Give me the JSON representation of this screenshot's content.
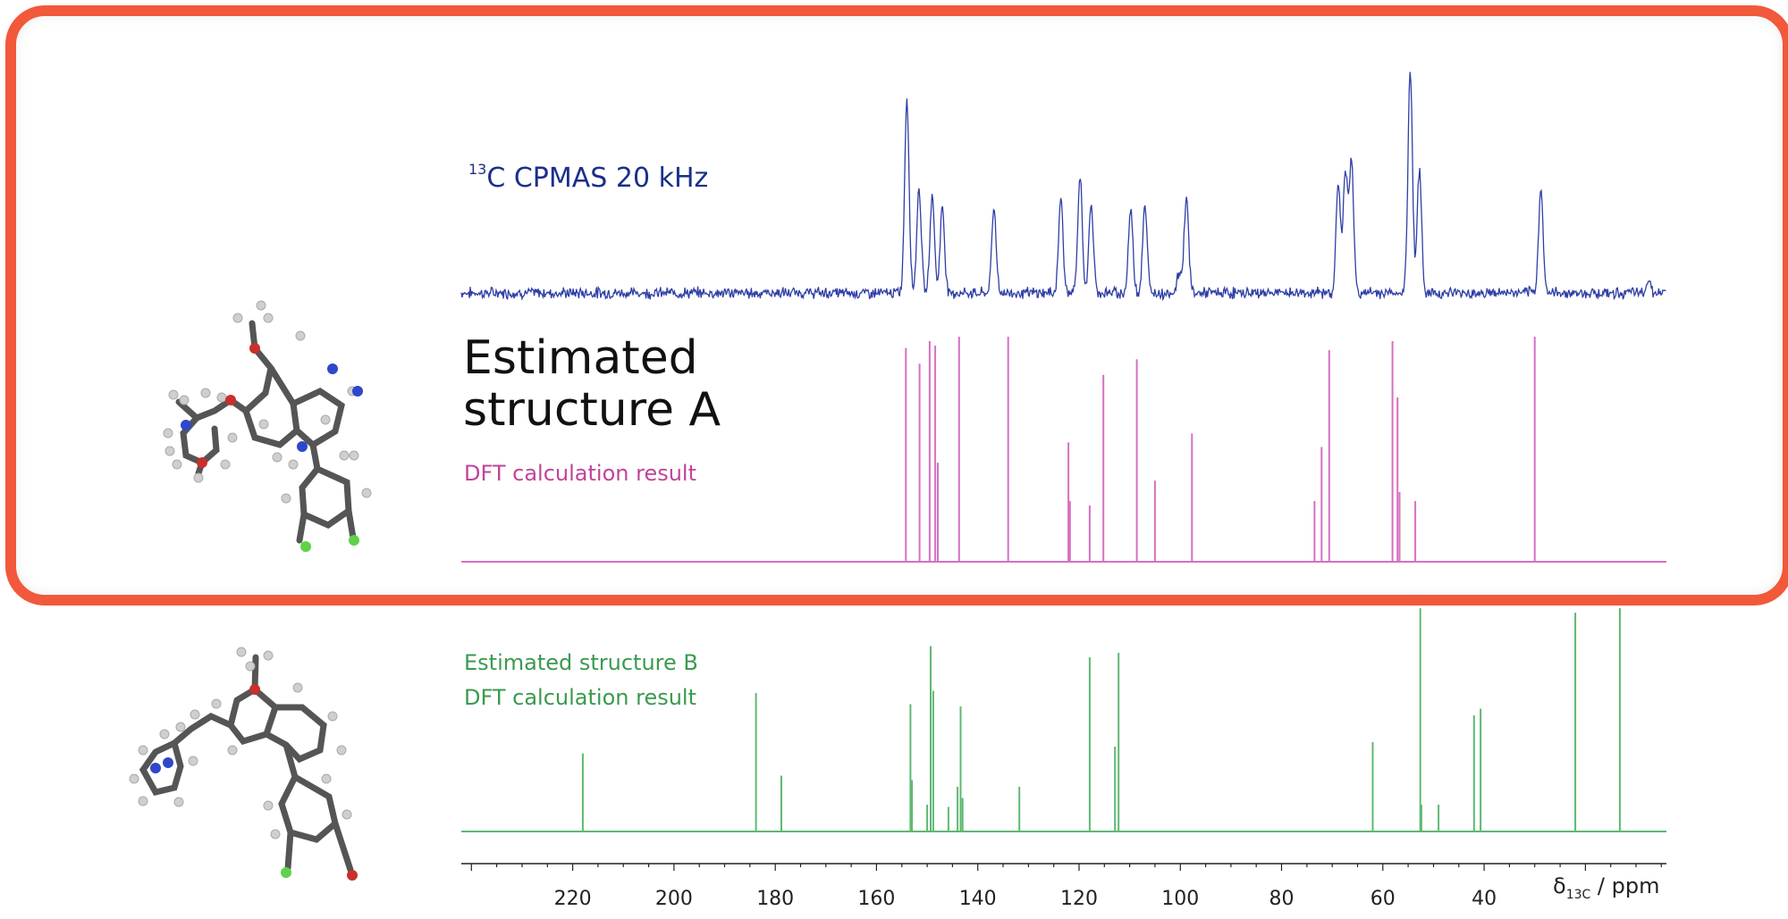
{
  "labels": {
    "cpmas_sup": "13",
    "cpmas_text": "C CPMAS 20 kHz",
    "structure_a_line1": "Estimated",
    "structure_a_line2": "structure A",
    "dft_a": "DFT calculation result",
    "structure_b": "Estimated structure B",
    "dft_b": "DFT calculation result",
    "axis_unit_delta": "δ",
    "axis_unit_sub": "13C",
    "axis_unit_rest": " / ppm"
  },
  "colors": {
    "highlight_frame": "#f2583a",
    "experimental": "#2f3fa5",
    "structure_a": "#d670c2",
    "structure_b": "#5fb872",
    "axis": "#222222"
  },
  "chart_data": {
    "type": "line",
    "xlabel": "δ13C / ppm",
    "x_reversed": true,
    "xlim": [
      242,
      4
    ],
    "xticks": [
      220,
      200,
      180,
      160,
      140,
      120,
      100,
      80,
      60,
      40
    ],
    "series": [
      {
        "name": "13C CPMAS 20 kHz",
        "kind": "spectrum",
        "peaks": [
          {
            "ppm": 154.0,
            "height": 0.86
          },
          {
            "ppm": 151.6,
            "height": 0.47
          },
          {
            "ppm": 149.0,
            "height": 0.44
          },
          {
            "ppm": 147.0,
            "height": 0.38
          },
          {
            "ppm": 136.8,
            "height": 0.38
          },
          {
            "ppm": 123.6,
            "height": 0.42
          },
          {
            "ppm": 119.8,
            "height": 0.51
          },
          {
            "ppm": 117.6,
            "height": 0.39
          },
          {
            "ppm": 109.8,
            "height": 0.37
          },
          {
            "ppm": 107.0,
            "height": 0.39
          },
          {
            "ppm": 100.2,
            "height": 0.09
          },
          {
            "ppm": 98.8,
            "height": 0.43
          },
          {
            "ppm": 68.8,
            "height": 0.48
          },
          {
            "ppm": 67.4,
            "height": 0.53
          },
          {
            "ppm": 66.2,
            "height": 0.58
          },
          {
            "ppm": 54.6,
            "height": 1.0
          },
          {
            "ppm": 52.8,
            "height": 0.54
          },
          {
            "ppm": 28.8,
            "height": 0.47
          },
          {
            "ppm": 7.5,
            "height": 0.06
          }
        ]
      },
      {
        "name": "Estimated structure A",
        "kind": "sticks",
        "sticks": [
          {
            "ppm": 154.2,
            "height": 0.95
          },
          {
            "ppm": 151.5,
            "height": 0.88
          },
          {
            "ppm": 149.5,
            "height": 0.98
          },
          {
            "ppm": 148.4,
            "height": 0.96
          },
          {
            "ppm": 147.9,
            "height": 0.44
          },
          {
            "ppm": 143.7,
            "height": 1.0
          },
          {
            "ppm": 134.0,
            "height": 1.0
          },
          {
            "ppm": 122.1,
            "height": 0.53
          },
          {
            "ppm": 121.8,
            "height": 0.27
          },
          {
            "ppm": 117.9,
            "height": 0.25
          },
          {
            "ppm": 115.2,
            "height": 0.83
          },
          {
            "ppm": 108.6,
            "height": 0.9
          },
          {
            "ppm": 105.0,
            "height": 0.36
          },
          {
            "ppm": 97.7,
            "height": 0.57
          },
          {
            "ppm": 73.5,
            "height": 0.27
          },
          {
            "ppm": 72.1,
            "height": 0.51
          },
          {
            "ppm": 70.6,
            "height": 0.94
          },
          {
            "ppm": 58.1,
            "height": 0.98
          },
          {
            "ppm": 57.1,
            "height": 0.73
          },
          {
            "ppm": 56.7,
            "height": 0.31
          },
          {
            "ppm": 53.6,
            "height": 0.27
          },
          {
            "ppm": 30.0,
            "height": 1.0
          }
        ]
      },
      {
        "name": "Estimated structure B",
        "kind": "sticks",
        "sticks": [
          {
            "ppm": 218.0,
            "height": 0.35
          },
          {
            "ppm": 183.8,
            "height": 0.62
          },
          {
            "ppm": 178.8,
            "height": 0.25
          },
          {
            "ppm": 153.3,
            "height": 0.57
          },
          {
            "ppm": 153.0,
            "height": 0.23
          },
          {
            "ppm": 150.0,
            "height": 0.12
          },
          {
            "ppm": 149.3,
            "height": 0.83
          },
          {
            "ppm": 148.8,
            "height": 0.63
          },
          {
            "ppm": 145.8,
            "height": 0.11
          },
          {
            "ppm": 144.0,
            "height": 0.2
          },
          {
            "ppm": 143.4,
            "height": 0.56
          },
          {
            "ppm": 143.0,
            "height": 0.15
          },
          {
            "ppm": 131.8,
            "height": 0.2
          },
          {
            "ppm": 117.9,
            "height": 0.78
          },
          {
            "ppm": 112.9,
            "height": 0.38
          },
          {
            "ppm": 112.2,
            "height": 0.8
          },
          {
            "ppm": 62.0,
            "height": 0.4
          },
          {
            "ppm": 52.6,
            "height": 1.0
          },
          {
            "ppm": 52.4,
            "height": 0.12
          },
          {
            "ppm": 49.0,
            "height": 0.12
          },
          {
            "ppm": 42.0,
            "height": 0.52
          },
          {
            "ppm": 40.7,
            "height": 0.55
          },
          {
            "ppm": 22.0,
            "height": 0.98
          },
          {
            "ppm": 13.2,
            "height": 1.0
          }
        ]
      }
    ]
  }
}
